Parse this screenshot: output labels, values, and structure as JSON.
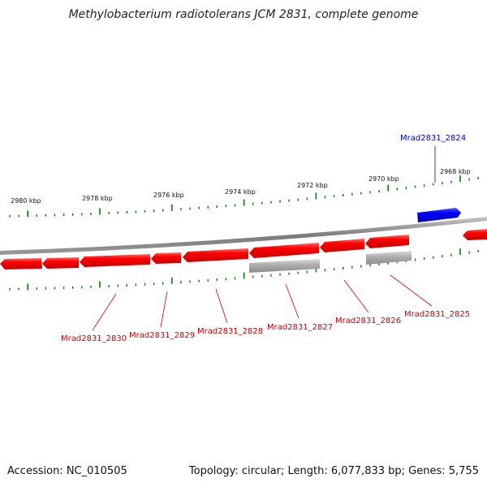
{
  "title": "Methylobacterium radiotolerans JCM 2831, complete genome",
  "footer": {
    "accession": "Accession: NC_010505",
    "summary": "Topology: circular; Length: 6,077,833 bp; Genes: 5,755"
  },
  "colors": {
    "forward_gene": "#0000dd",
    "reverse_gene": "#ee0000",
    "rna_gene": "#aaaaaa",
    "backbone": "#888888",
    "ticks": "#0a7a0a",
    "label_red": "#cc0000",
    "label_blue": "#0000cc"
  },
  "scale_labels": [
    "2980 kbp",
    "2978 kbp",
    "2976 kbp",
    "2974 kbp",
    "2972 kbp",
    "2970 kbp",
    "2968 kbp"
  ],
  "gene_labels": [
    {
      "text": "Mrad2831_2824",
      "color": "blue"
    },
    {
      "text": "Mrad2831_2825",
      "color": "red"
    },
    {
      "text": "Mrad2831_2826",
      "color": "red"
    },
    {
      "text": "Mrad2831_2827",
      "color": "red"
    },
    {
      "text": "Mrad2831_2828",
      "color": "red"
    },
    {
      "text": "Mrad2831_2829",
      "color": "red"
    },
    {
      "text": "Mrad2831_2830",
      "color": "red"
    }
  ]
}
